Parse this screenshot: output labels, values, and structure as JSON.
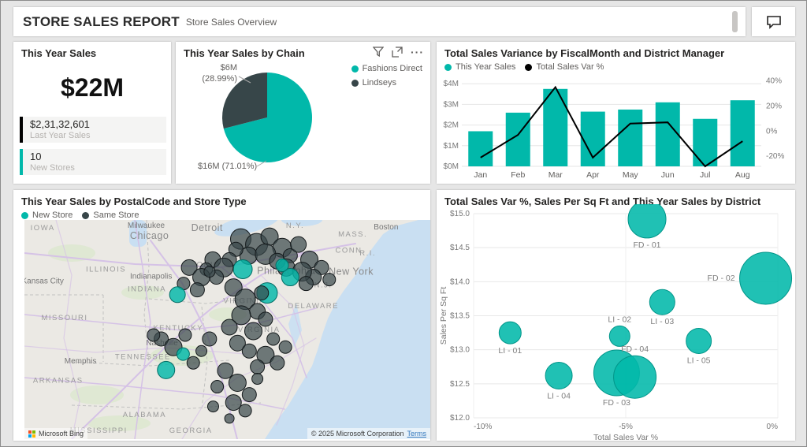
{
  "header": {
    "title": "STORE SALES REPORT",
    "subtitle": "Store Sales Overview"
  },
  "icons": {
    "comments": "speech-bubble",
    "filter": "funnel",
    "focus_mode": "expand-arrow-box",
    "more_options": "ellipsis",
    "map_brand_logo": "microsoft-four-squares"
  },
  "colors": {
    "teal": "#01B8AA",
    "dark": "#374649",
    "axis_text": "#777777",
    "grid": "#e6e6e6"
  },
  "chart_data": [
    {
      "id": "kpi",
      "type": "card",
      "title": "This Year Sales",
      "value": "$22M",
      "items": [
        {
          "value": "$2,31,32,601",
          "label": "Last Year Sales",
          "color": "#000000"
        },
        {
          "value": "10",
          "label": "New Stores",
          "color": "#01B8AA"
        }
      ]
    },
    {
      "id": "pie",
      "type": "pie",
      "title": "This Year Sales by Chain",
      "legend": [
        {
          "label": "Fashions Direct",
          "color": "#01B8AA"
        },
        {
          "label": "Lindseys",
          "color": "#374649"
        }
      ],
      "slices": [
        {
          "name": "Fashions Direct",
          "value_label": "$16M",
          "pct": 71.01,
          "color": "#01B8AA"
        },
        {
          "name": "Lindseys",
          "value_label": "$6M",
          "pct": 28.99,
          "color": "#374649"
        }
      ],
      "callouts": {
        "small_line1": "$6M",
        "small_line2": "(28.99%)",
        "big": "$16M (71.01%)"
      }
    },
    {
      "id": "bars",
      "type": "bar+line",
      "title": "Total Sales Variance by FiscalMonth and District Manager",
      "legend": [
        {
          "label": "This Year Sales",
          "color": "#01B8AA"
        },
        {
          "label": "Total Sales Var %",
          "color": "#000000"
        }
      ],
      "categories": [
        "Jan",
        "Feb",
        "Mar",
        "Apr",
        "May",
        "Jun",
        "Jul",
        "Aug"
      ],
      "series": [
        {
          "name": "This Year Sales",
          "kind": "bar",
          "unit": "$M",
          "color": "#01B8AA",
          "values": [
            1.7,
            2.6,
            3.75,
            2.65,
            2.75,
            3.1,
            2.3,
            3.2
          ]
        },
        {
          "name": "Total Sales Var %",
          "kind": "line",
          "unit": "%",
          "color": "#000000",
          "values": [
            -21,
            -3,
            35,
            -21,
            6,
            7,
            -28,
            -8
          ]
        }
      ],
      "y_left": {
        "tick_values": [
          0,
          1,
          2,
          3,
          4
        ],
        "tick_labels": [
          "$0M",
          "$1M",
          "$2M",
          "$3M",
          "$4M"
        ],
        "min": 0,
        "max": 4.2
      },
      "y_right": {
        "tick_values": [
          -20,
          0,
          20,
          40
        ],
        "tick_labels": [
          "-20%",
          "0%",
          "20%",
          "40%"
        ],
        "min": -28,
        "max": 41
      }
    },
    {
      "id": "map",
      "type": "map-bubbles",
      "title": "This Year Sales by PostalCode and Store Type",
      "legend": [
        {
          "label": "New Store",
          "color": "#01B8AA"
        },
        {
          "label": "Same Store",
          "color": "#374649"
        }
      ],
      "attribution": {
        "brand": "Microsoft Bing",
        "copyright": "© 2025 Microsoft Corporation",
        "terms": "Terms"
      },
      "place_labels": [
        {
          "t": "IOWA",
          "x": 0.045,
          "y": 0.033,
          "k": "state"
        },
        {
          "t": "Milwaukee",
          "x": 0.3,
          "y": 0.022,
          "k": "city"
        },
        {
          "t": "Chicago",
          "x": 0.308,
          "y": 0.072,
          "k": "citylg"
        },
        {
          "t": "Detroit",
          "x": 0.45,
          "y": 0.036,
          "k": "citylg"
        },
        {
          "t": "N.Y.",
          "x": 0.667,
          "y": 0.022,
          "k": "state"
        },
        {
          "t": "Boston",
          "x": 0.891,
          "y": 0.029,
          "k": "city"
        },
        {
          "t": "MASS.",
          "x": 0.809,
          "y": 0.062,
          "k": "state"
        },
        {
          "t": "CONN",
          "x": 0.799,
          "y": 0.134,
          "k": "state"
        },
        {
          "t": "R.I.",
          "x": 0.846,
          "y": 0.148,
          "k": "state"
        },
        {
          "t": "New York",
          "x": 0.805,
          "y": 0.236,
          "k": "citylg"
        },
        {
          "t": "Philadelphia",
          "x": 0.645,
          "y": 0.232,
          "k": "citylg"
        },
        {
          "t": "N.J.",
          "x": 0.736,
          "y": 0.293,
          "k": "state"
        },
        {
          "t": "DELAWARE",
          "x": 0.712,
          "y": 0.388,
          "k": "state"
        },
        {
          "t": "ILLINOIS",
          "x": 0.201,
          "y": 0.221,
          "k": "state"
        },
        {
          "t": "Indianapolis",
          "x": 0.312,
          "y": 0.254,
          "k": "city"
        },
        {
          "t": "INDIANA",
          "x": 0.302,
          "y": 0.312,
          "k": "state"
        },
        {
          "t": "OHIO",
          "x": 0.454,
          "y": 0.199,
          "k": "state"
        },
        {
          "t": "Kansas City",
          "x": 0.045,
          "y": 0.275,
          "k": "city"
        },
        {
          "t": "MISSOURI",
          "x": 0.099,
          "y": 0.442,
          "k": "state"
        },
        {
          "t": "KENTUCKY",
          "x": 0.379,
          "y": 0.489,
          "k": "state"
        },
        {
          "t": "VIRGINIA",
          "x": 0.542,
          "y": 0.366,
          "k": "state"
        },
        {
          "t": "VIRGINIA",
          "x": 0.578,
          "y": 0.496,
          "k": "state"
        },
        {
          "t": "Nashville",
          "x": 0.339,
          "y": 0.558,
          "k": "city"
        },
        {
          "t": "TENNESSEE",
          "x": 0.292,
          "y": 0.62,
          "k": "state"
        },
        {
          "t": "Memphis",
          "x": 0.138,
          "y": 0.641,
          "k": "city"
        },
        {
          "t": "ARKANSAS",
          "x": 0.083,
          "y": 0.728,
          "k": "state"
        },
        {
          "t": "ALABAMA",
          "x": 0.296,
          "y": 0.884,
          "k": "state"
        },
        {
          "t": "MISSISSIPPI",
          "x": 0.183,
          "y": 0.957,
          "k": "state"
        },
        {
          "t": "GEORGIA",
          "x": 0.41,
          "y": 0.957,
          "k": "state"
        }
      ],
      "bubbles": [
        [
          0.533,
          0.087,
          13,
          0
        ],
        [
          0.572,
          0.112,
          14,
          0
        ],
        [
          0.604,
          0.076,
          11,
          0
        ],
        [
          0.635,
          0.127,
          12,
          0
        ],
        [
          0.552,
          0.163,
          11,
          0
        ],
        [
          0.594,
          0.156,
          13,
          0
        ],
        [
          0.623,
          0.188,
          10,
          0
        ],
        [
          0.521,
          0.134,
          9,
          0
        ],
        [
          0.655,
          0.163,
          9,
          0
        ],
        [
          0.675,
          0.112,
          10,
          0
        ],
        [
          0.645,
          0.217,
          11,
          0
        ],
        [
          0.505,
          0.181,
          9,
          0
        ],
        [
          0.702,
          0.181,
          11,
          0
        ],
        [
          0.732,
          0.217,
          9,
          0
        ],
        [
          0.712,
          0.261,
          10,
          0
        ],
        [
          0.751,
          0.272,
          8,
          0
        ],
        [
          0.684,
          0.236,
          12,
          0
        ],
        [
          0.694,
          0.29,
          9,
          0
        ],
        [
          0.538,
          0.225,
          12,
          1
        ],
        [
          0.655,
          0.261,
          11,
          1
        ],
        [
          0.598,
          0.333,
          13,
          1
        ],
        [
          0.635,
          0.207,
          8,
          1
        ],
        [
          0.464,
          0.181,
          10,
          0
        ],
        [
          0.491,
          0.217,
          12,
          0
        ],
        [
          0.473,
          0.261,
          9,
          0
        ],
        [
          0.448,
          0.225,
          8,
          0
        ],
        [
          0.406,
          0.217,
          10,
          0
        ],
        [
          0.436,
          0.261,
          11,
          0
        ],
        [
          0.392,
          0.29,
          8,
          0
        ],
        [
          0.456,
          0.236,
          7,
          0
        ],
        [
          0.426,
          0.319,
          9,
          0
        ],
        [
          0.377,
          0.341,
          10,
          1
        ],
        [
          0.515,
          0.308,
          11,
          0
        ],
        [
          0.544,
          0.362,
          13,
          0
        ],
        [
          0.574,
          0.417,
          10,
          0
        ],
        [
          0.534,
          0.435,
          12,
          0
        ],
        [
          0.505,
          0.489,
          10,
          0
        ],
        [
          0.564,
          0.507,
          11,
          0
        ],
        [
          0.594,
          0.453,
          9,
          0
        ],
        [
          0.525,
          0.562,
          10,
          0
        ],
        [
          0.554,
          0.598,
          9,
          0
        ],
        [
          0.613,
          0.543,
          8,
          0
        ],
        [
          0.584,
          0.333,
          9,
          0
        ],
        [
          0.594,
          0.616,
          11,
          0
        ],
        [
          0.623,
          0.652,
          9,
          0
        ],
        [
          0.643,
          0.58,
          8,
          0
        ],
        [
          0.574,
          0.67,
          9,
          0
        ],
        [
          0.337,
          0.543,
          9,
          0
        ],
        [
          0.367,
          0.58,
          11,
          0
        ],
        [
          0.396,
          0.525,
          8,
          0
        ],
        [
          0.436,
          0.598,
          7,
          0
        ],
        [
          0.318,
          0.525,
          8,
          0
        ],
        [
          0.416,
          0.652,
          8,
          0
        ],
        [
          0.456,
          0.543,
          9,
          0
        ],
        [
          0.391,
          0.612,
          8,
          1
        ],
        [
          0.349,
          0.685,
          11,
          1
        ],
        [
          0.495,
          0.688,
          10,
          0
        ],
        [
          0.525,
          0.743,
          11,
          0
        ],
        [
          0.554,
          0.797,
          9,
          0
        ],
        [
          0.475,
          0.761,
          8,
          0
        ],
        [
          0.515,
          0.833,
          10,
          0
        ],
        [
          0.544,
          0.87,
          8,
          0
        ],
        [
          0.574,
          0.725,
          7,
          0
        ],
        [
          0.465,
          0.851,
          7,
          0
        ],
        [
          0.505,
          0.906,
          6,
          0
        ]
      ]
    },
    {
      "id": "scatter",
      "type": "scatter",
      "title": "Total Sales Var %, Sales Per Sq Ft and This Year Sales by District",
      "xlabel": "Total Sales Var %",
      "ylabel": "Sales Per Sq Ft",
      "x_ticks": [
        {
          "v": -10,
          "label": "-10%"
        },
        {
          "v": -5,
          "label": "-5%"
        },
        {
          "v": 0,
          "label": "0%"
        }
      ],
      "x_range": [
        -10,
        0
      ],
      "y_range": [
        12,
        15
      ],
      "y_tick_step": 0.5,
      "points": [
        {
          "label": "FD - 01",
          "x": -4.3,
          "y": 14.92,
          "r": 24,
          "lp": "below"
        },
        {
          "label": "FD - 02",
          "x": -0.4,
          "y": 14.05,
          "r": 33,
          "lp": "left"
        },
        {
          "label": "LI - 03",
          "x": -3.8,
          "y": 13.7,
          "r": 16,
          "lp": "below"
        },
        {
          "label": "LI - 02",
          "x": -5.2,
          "y": 13.2,
          "r": 13,
          "lp": "above"
        },
        {
          "label": "LI - 01",
          "x": -8.8,
          "y": 13.25,
          "r": 14,
          "lp": "below"
        },
        {
          "label": "LI - 05",
          "x": -2.6,
          "y": 13.13,
          "r": 16,
          "lp": "below"
        },
        {
          "label": "LI - 04",
          "x": -7.2,
          "y": 12.62,
          "r": 17,
          "lp": "below"
        },
        {
          "label": "FD - 03",
          "x": -5.3,
          "y": 12.66,
          "r": 29,
          "lp": "below"
        },
        {
          "label": "FD - 04",
          "x": -4.7,
          "y": 12.6,
          "r": 27,
          "lp": "above"
        }
      ]
    }
  ]
}
